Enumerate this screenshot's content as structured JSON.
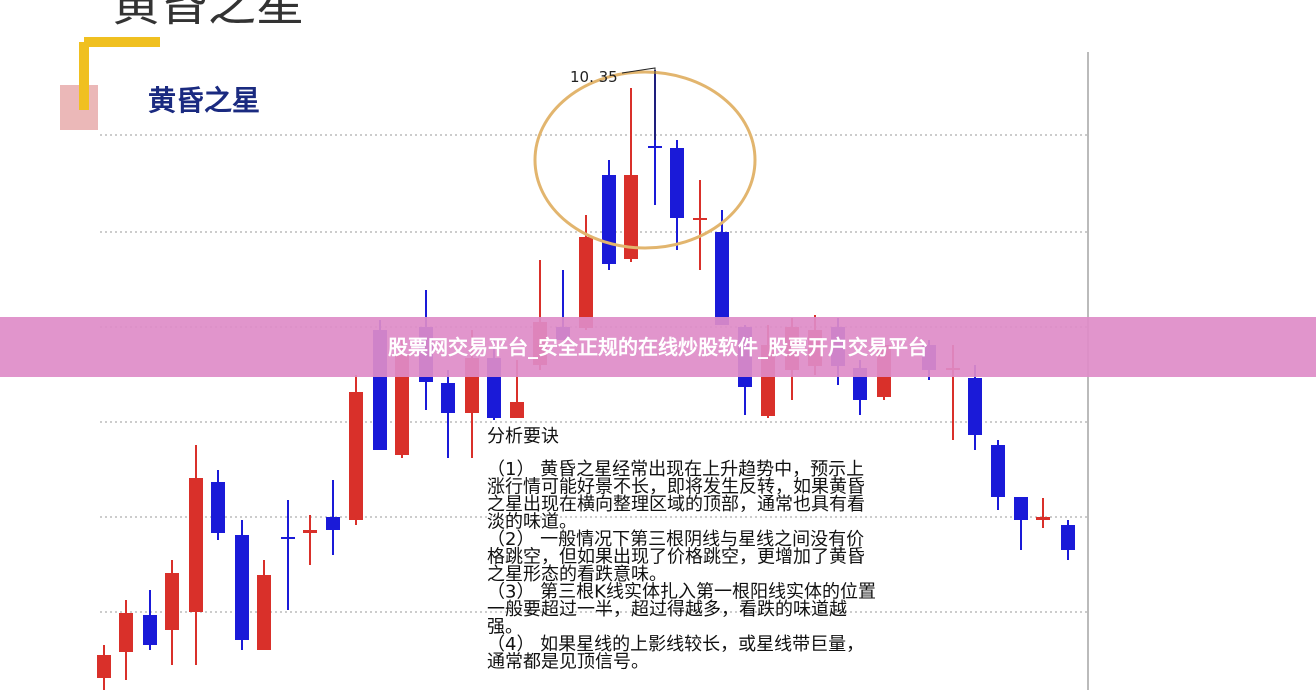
{
  "image": {
    "top_title": "黄昏之星",
    "box_title": "黄昏之星",
    "price_label": "10. 35",
    "analysis_heading": "分析要诀",
    "analysis_lines": [
      "（1） 黄昏之星经常出现在上升趋势中，预示上",
      "涨行情可能好景不长，即将发生反转，如果黄昏",
      "之星出现在横向整理区域的顶部，通常也具有看",
      "淡的味道。",
      "（2） 一般情况下第三根阴线与星线之间没有价",
      "格跳空，但如果出现了价格跳空，更增加了黄昏",
      "之星形态的看跌意味。",
      "（3） 第三根K线实体扎入第一根阳线实体的位置",
      "一般要超过一半，超过得越多，看跌的味道越",
      "强。",
      "（4） 如果星线的上影线较长，或星线带巨量，",
      "通常都是见顶信号。"
    ]
  },
  "banner": {
    "text": "股票网交易平台_安全正规的在线炒股软件_股票开户交易平台"
  }
}
